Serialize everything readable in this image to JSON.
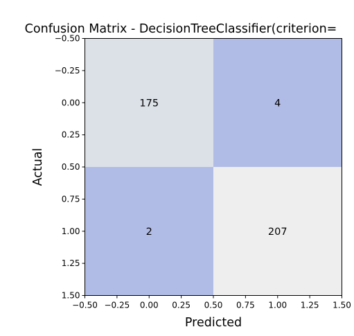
{
  "chart_data": {
    "type": "heatmap",
    "title": "Confusion Matrix - DecisionTreeClassifier(criterion=",
    "xlabel": "Predicted",
    "ylabel": "Actual",
    "xlim": [
      -0.5,
      1.5
    ],
    "ylim": [
      1.5,
      -0.5
    ],
    "x_ticks": [
      "−0.50",
      "−0.25",
      "0.00",
      "0.25",
      "0.50",
      "0.75",
      "1.00",
      "1.25",
      "1.50"
    ],
    "y_ticks": [
      "−0.50",
      "−0.25",
      "0.00",
      "0.25",
      "0.50",
      "0.75",
      "1.00",
      "1.25",
      "1.50"
    ],
    "matrix": [
      [
        175,
        4
      ],
      [
        2,
        207
      ]
    ],
    "cell_colors": [
      [
        "#dce1e8",
        "#b1bce6"
      ],
      [
        "#b1bce6",
        "#eeeeee"
      ]
    ],
    "grid": false
  }
}
